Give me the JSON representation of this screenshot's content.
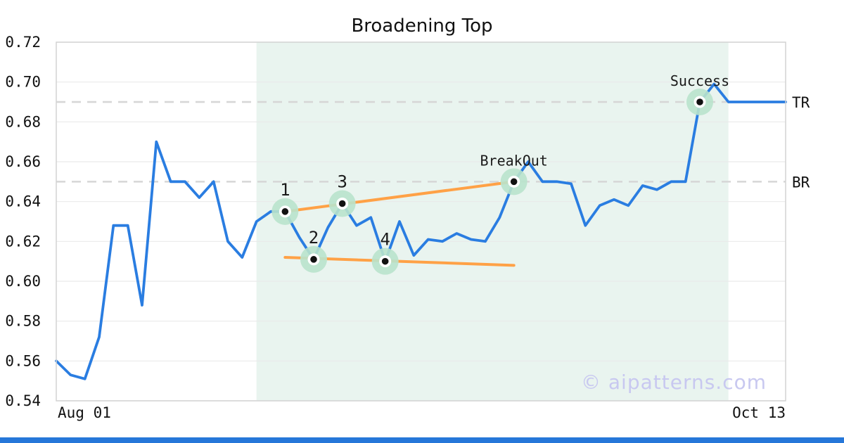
{
  "title_block": {
    "title": "Broadening Top"
  },
  "watermark": "© aipatterns.com",
  "accent": {
    "bottom_bar_color": "#2677d9"
  },
  "chart_data": {
    "type": "line",
    "title": "Broadening Top",
    "series_name": "price",
    "x_axis": {
      "start_label": "Aug 01",
      "end_label": "Oct 13"
    },
    "y_axis": {
      "min": 0.54,
      "max": 0.72,
      "tick_step": 0.02,
      "tick_labels": [
        "0.54",
        "0.56",
        "0.58",
        "0.60",
        "0.62",
        "0.64",
        "0.66",
        "0.68",
        "0.70",
        "0.72"
      ]
    },
    "grid": "horizontal",
    "legend": "none",
    "values": [
      0.56,
      0.553,
      0.551,
      0.572,
      0.628,
      0.628,
      0.588,
      0.67,
      0.65,
      0.65,
      0.642,
      0.65,
      0.62,
      0.612,
      0.63,
      0.635,
      0.635,
      0.622,
      0.611,
      0.627,
      0.639,
      0.628,
      0.632,
      0.61,
      0.63,
      0.613,
      0.621,
      0.62,
      0.624,
      0.621,
      0.62,
      0.632,
      0.65,
      0.66,
      0.65,
      0.65,
      0.649,
      0.628,
      0.638,
      0.641,
      0.638,
      0.648,
      0.646,
      0.65,
      0.65,
      0.69,
      0.699,
      0.69,
      0.69,
      0.69,
      0.69,
      0.69
    ],
    "markers": [
      {
        "index": 16,
        "label": "1",
        "value": 0.635
      },
      {
        "index": 18,
        "label": "2",
        "value": 0.611
      },
      {
        "index": 20,
        "label": "3",
        "value": 0.639
      },
      {
        "index": 23,
        "label": "4",
        "value": 0.61
      },
      {
        "index": 32,
        "label": "BreakOut",
        "value": 0.65
      },
      {
        "index": 45,
        "label": "Success",
        "value": 0.69
      }
    ],
    "levels": [
      {
        "label": "TR",
        "value": 0.69
      },
      {
        "label": "BR",
        "value": 0.65
      }
    ],
    "trendlines": [
      {
        "from_index": 16,
        "from_value": 0.635,
        "to_index": 32,
        "to_value": 0.65
      },
      {
        "from_index": 16,
        "from_value": 0.612,
        "to_index": 32,
        "to_value": 0.608
      }
    ],
    "pattern_shade": {
      "from_index": 14,
      "to_index": 47
    },
    "colors": {
      "line": "#2a7de1",
      "trendline": "#ffa146",
      "marker_halo": "#b9e3cc",
      "marker_dot": "#111111",
      "shade": "#e9f4ef",
      "grid": "#e9e9e9",
      "border": "#d3d3d3",
      "dashed_level": "#d6d6d6",
      "axis_text": "#111111",
      "annotation_text": "#1a1a1a",
      "watermark": "#c8c8f0"
    }
  }
}
